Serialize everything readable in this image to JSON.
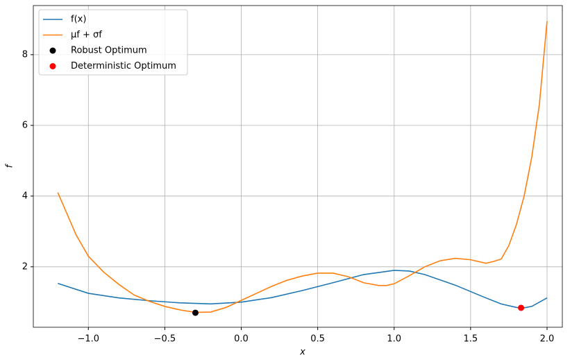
{
  "chart_data": {
    "type": "line",
    "xlabel": "x",
    "ylabel": "f",
    "xlim": [
      -1.36,
      2.1
    ],
    "ylim": [
      0.29,
      9.39
    ],
    "xticks": [
      {
        "value": -1,
        "label": "−1.0"
      },
      {
        "value": -0.5,
        "label": "−0.5"
      },
      {
        "value": 0,
        "label": "0.0"
      },
      {
        "value": 0.5,
        "label": "0.5"
      },
      {
        "value": 1,
        "label": "1.0"
      },
      {
        "value": 1.5,
        "label": "1.5"
      },
      {
        "value": 2,
        "label": "2.0"
      }
    ],
    "yticks": [
      2,
      4,
      6,
      8
    ],
    "grid": true,
    "legend": "upper left",
    "series": [
      {
        "name": "f(x)",
        "color": "#1f77b4",
        "x": [
          -1.2,
          -1.0,
          -0.8,
          -0.6,
          -0.4,
          -0.2,
          0,
          0.2,
          0.4,
          0.6,
          0.8,
          1.0,
          1.1,
          1.2,
          1.4,
          1.6,
          1.7,
          1.8,
          1.85,
          1.9,
          2.0
        ],
        "values": [
          1.53,
          1.25,
          1.12,
          1.04,
          0.98,
          0.95,
          1.0,
          1.13,
          1.33,
          1.55,
          1.78,
          1.9,
          1.88,
          1.78,
          1.48,
          1.12,
          0.95,
          0.85,
          0.84,
          0.88,
          1.12
        ]
      },
      {
        "name": "μf + σf",
        "color": "#ff7f0e",
        "x": [
          -1.2,
          -1.08,
          -1.0,
          -0.9,
          -0.8,
          -0.7,
          -0.6,
          -0.5,
          -0.4,
          -0.3,
          -0.2,
          -0.1,
          0,
          0.1,
          0.2,
          0.3,
          0.4,
          0.5,
          0.6,
          0.7,
          0.8,
          0.9,
          0.95,
          1.0,
          1.1,
          1.2,
          1.3,
          1.4,
          1.5,
          1.6,
          1.65,
          1.7,
          1.75,
          1.8,
          1.85,
          1.9,
          1.95,
          2.0
        ],
        "values": [
          4.1,
          2.9,
          2.3,
          1.85,
          1.5,
          1.2,
          1.02,
          0.88,
          0.78,
          0.71,
          0.72,
          0.85,
          1.05,
          1.25,
          1.45,
          1.62,
          1.74,
          1.82,
          1.82,
          1.72,
          1.55,
          1.47,
          1.47,
          1.52,
          1.75,
          2.0,
          2.17,
          2.24,
          2.2,
          2.1,
          2.15,
          2.22,
          2.6,
          3.2,
          4.0,
          5.1,
          6.6,
          8.95
        ]
      }
    ],
    "points": [
      {
        "name": "Robust Optimum",
        "color": "#000000",
        "x": -0.3,
        "y": 0.7
      },
      {
        "name": "Deterministic Optimum",
        "color": "#ff0000",
        "x": 1.83,
        "y": 0.84
      }
    ]
  }
}
